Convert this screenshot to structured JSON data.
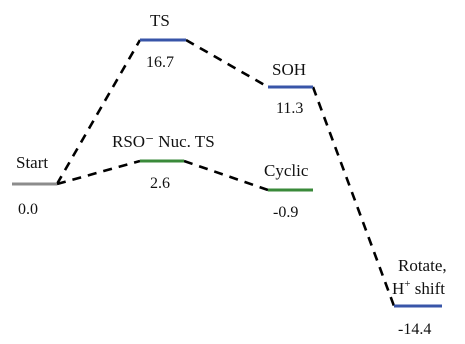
{
  "levels": {
    "start": {
      "name": "Start",
      "energy": "0.0",
      "color": "#8c8c8c"
    },
    "rso_ts": {
      "name": "RSO⁻ Nuc. TS",
      "energy": "2.6",
      "color": "#3a8a3a"
    },
    "cyclic": {
      "name": "Cyclic",
      "energy": "-0.9",
      "color": "#3a8a3a"
    },
    "ts": {
      "name": "TS",
      "energy": "16.7",
      "color": "#3855a8"
    },
    "soh": {
      "name": "SOH",
      "energy": "11.3",
      "color": "#3855a8"
    },
    "rotate": {
      "name_line1": "Rotate,",
      "name_line2_base": "H",
      "name_line2_sup": "+",
      "name_line2_rest": " shift",
      "energy": "-14.4",
      "color": "#3855a8"
    }
  }
}
